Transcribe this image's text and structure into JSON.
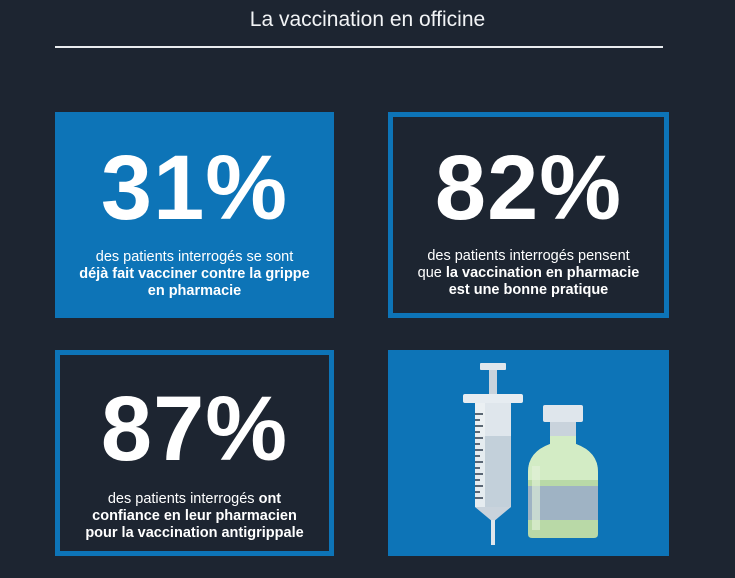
{
  "title": "La vaccination en officine",
  "cards": [
    {
      "percent": "31%",
      "line1": "des patients interrogés se sont",
      "line2": "déjà fait vacciner contre la grippe",
      "line3": "en pharmacie"
    },
    {
      "percent": "82%",
      "line1": "des patients interrogés pensent",
      "line2_plain": "que ",
      "line2_bold": "la vaccination en pharmacie",
      "line3": "est une bonne pratique"
    },
    {
      "percent": "87%",
      "line1_plain": "des patients interrogés ",
      "line1_bold": "ont",
      "line2": "confiance en leur pharmacien",
      "line3": "pour la vaccination antigrippale"
    }
  ],
  "illustration": {
    "icons": [
      "syringe-icon",
      "vaccine-vial-icon"
    ],
    "colors": {
      "background": "#0d74b7",
      "syringe_body": "#dfe6ec",
      "vial_liquid": "#b9d9a7",
      "label": "#9fb3c4"
    }
  },
  "colors": {
    "page_background": "#1d2531",
    "accent_blue": "#0d74b7",
    "text": "#ffffff"
  }
}
